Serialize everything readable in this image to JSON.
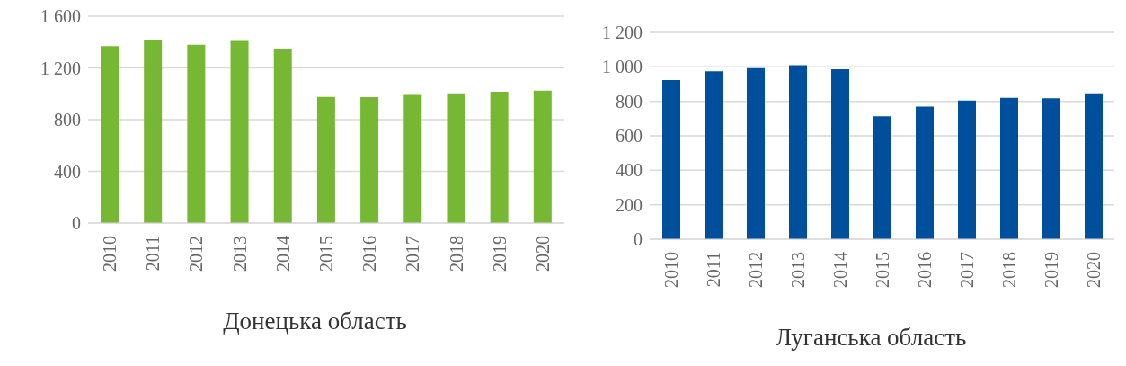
{
  "chart_data": [
    {
      "type": "bar",
      "title": "Донецька область",
      "categories": [
        "2010",
        "2011",
        "2012",
        "2013",
        "2014",
        "2015",
        "2016",
        "2017",
        "2018",
        "2019",
        "2020"
      ],
      "values": [
        1368,
        1412,
        1379,
        1409,
        1350,
        976,
        974,
        991,
        1003,
        1015,
        1024
      ],
      "color": "#76b833",
      "ylim": [
        0,
        1600
      ],
      "yticks": [
        0,
        400,
        800,
        {
          "value": 1200,
          "label": "1 200"
        },
        {
          "value": 1600,
          "label": "1 600"
        }
      ],
      "grid": "y",
      "legend": false
    },
    {
      "type": "bar",
      "title": "Луганська область",
      "categories": [
        "2010",
        "2011",
        "2012",
        "2013",
        "2014",
        "2015",
        "2016",
        "2017",
        "2018",
        "2019",
        "2020"
      ],
      "values": [
        924,
        975,
        993,
        1010,
        986,
        713,
        770,
        805,
        821,
        818,
        847
      ],
      "color": "#004f9c",
      "ylim": [
        0,
        1200
      ],
      "yticks": [
        0,
        200,
        400,
        600,
        800,
        {
          "value": 1000,
          "label": "1 000"
        },
        {
          "value": 1200,
          "label": "1 200"
        }
      ],
      "grid": "y",
      "legend": false
    }
  ]
}
